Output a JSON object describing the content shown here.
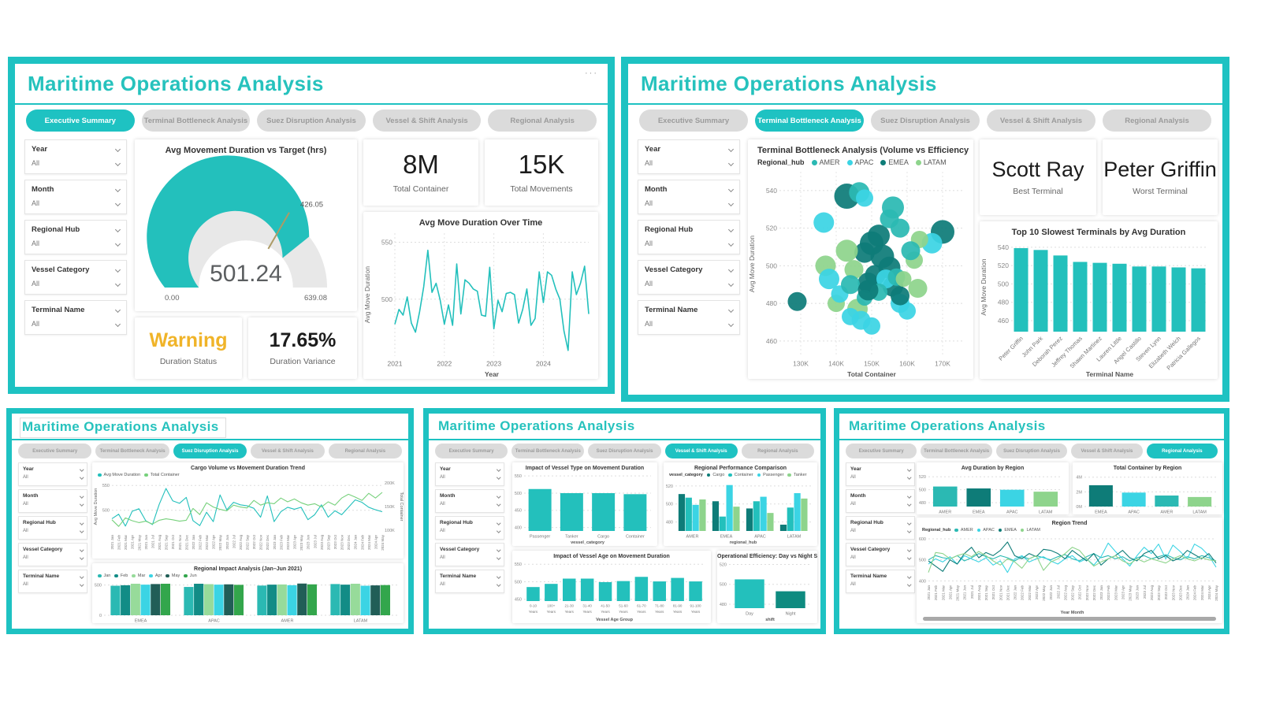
{
  "app": {
    "title": "Maritime Operations Analysis",
    "menu_dots": "···"
  },
  "tabs": [
    "Executive Summary",
    "Terminal Bottleneck Analysis",
    "Suez Disruption Analysis",
    "Vessel & Shift Analysis",
    "Regional Analysis"
  ],
  "filters": [
    {
      "label": "Year",
      "value": "All"
    },
    {
      "label": "Month",
      "value": "All"
    },
    {
      "label": "Regional Hub",
      "value": "All"
    },
    {
      "label": "Vessel Category",
      "value": "All"
    },
    {
      "label": "Terminal Name",
      "value": "All"
    }
  ],
  "colors": {
    "teal": "#1EC2C2",
    "chart_teal": "#23C0BC",
    "amer": "#2BB9B3",
    "apac": "#3BD4E4",
    "emea": "#0E7C78",
    "latam": "#8ED48C",
    "green_line": "#77D17C",
    "warning": "#F0B429",
    "dark_teal": "#0F8B80"
  },
  "panels": {
    "executive": {
      "active_tab": 0,
      "cards": {
        "total_container": {
          "value": "8M",
          "label": "Total Container"
        },
        "total_movements": {
          "value": "15K",
          "label": "Total Movements"
        },
        "duration_status": {
          "value": "Warning",
          "label": "Duration Status"
        },
        "duration_variance": {
          "value": "17.65%",
          "label": "Duration Variance"
        }
      }
    },
    "terminal": {
      "active_tab": 1,
      "cards": {
        "best": {
          "value": "Scott Ray",
          "label": "Best Terminal"
        },
        "worst": {
          "value": "Peter Griffin",
          "label": "Worst Terminal"
        }
      }
    },
    "suez": {
      "active_tab": 2
    },
    "vessel": {
      "active_tab": 3
    },
    "regional": {
      "active_tab": 4
    }
  },
  "months": [
    "2021 Jan",
    "2021 Feb",
    "2021 Mar",
    "2021 Apr",
    "2021 May",
    "2021 Jun",
    "2021 Jul",
    "2021 Aug",
    "2021 Sep",
    "2021 Oct",
    "2021 Nov",
    "2021 Dec",
    "2022 Jan",
    "2022 Feb",
    "2022 Mar",
    "2022 Apr",
    "2022 May",
    "2022 Jun",
    "2022 Jul",
    "2022 Aug",
    "2022 Sep",
    "2022 Oct",
    "2022 Nov",
    "2022 Dec",
    "2023 Jan",
    "2023 Feb",
    "2023 Mar",
    "2023 Apr",
    "2023 May",
    "2023 Jun",
    "2023 Jul",
    "2023 Aug",
    "2023 Sep",
    "2023 Oct",
    "2023 Nov",
    "2023 Dec",
    "2024 Jan",
    "2024 Feb",
    "2024 Mar",
    "2024 Apr",
    "2024 May"
  ],
  "chart_data": [
    {
      "type": "gauge",
      "title": "Avg Movement Duration vs Target (hrs)",
      "value": 501.24,
      "min": 0,
      "max": 639.08,
      "target": 426.05,
      "value_label": "501.24",
      "min_label": "0.00",
      "max_label": "639.08",
      "target_label": "426.05",
      "color": "#23C0BC"
    },
    {
      "type": "line",
      "title": "Avg Move Duration Over Time",
      "xlabel": "Year",
      "ylabel": "Avg Move Duration",
      "ylim": [
        450,
        558
      ],
      "yticks": [
        500,
        550
      ],
      "xticks_at": [
        0,
        12,
        24,
        36
      ],
      "xtick_labels": [
        "2021",
        "2022",
        "2023",
        "2024"
      ],
      "series": [
        {
          "name": "Avg Move Duration",
          "color": "#23C0BC",
          "values": [
            478,
            491,
            486,
            502,
            479,
            471,
            489,
            511,
            543,
            506,
            514,
            499,
            478,
            495,
            477,
            531,
            487,
            517,
            514,
            509,
            507,
            486,
            485,
            528,
            474,
            499,
            489,
            505,
            506,
            504,
            479,
            491,
            509,
            477,
            483,
            524,
            497,
            524,
            521,
            509,
            500,
            472,
            455,
            524,
            504,
            514,
            529,
            487
          ]
        }
      ]
    },
    {
      "type": "scatter",
      "title": "Terminal Bottleneck Analysis (Volume vs Efficiency",
      "legend_title": "Regional_hub",
      "xlabel": "Total Container",
      "ylabel": "Avg Move Duration",
      "xlim": [
        124,
        176
      ],
      "ylim": [
        452,
        550
      ],
      "yticks": [
        460,
        480,
        500,
        520,
        540
      ],
      "xticks": [
        130,
        140,
        150,
        160,
        170
      ],
      "xtick_labels": [
        "130K",
        "140K",
        "150K",
        "160K",
        "170K"
      ],
      "series": [
        {
          "name": "AMER",
          "color": "#2BB9B3"
        },
        {
          "name": "APAC",
          "color": "#3BD4E4"
        },
        {
          "name": "EMEA",
          "color": "#0E7C78"
        },
        {
          "name": "LATAM",
          "color": "#8ED48C"
        }
      ],
      "points": [
        [
          143,
          537,
          16,
          2
        ],
        [
          146.5,
          539,
          13,
          0
        ],
        [
          148,
          536,
          11,
          1
        ],
        [
          156,
          531,
          14,
          0
        ],
        [
          136.5,
          523,
          13,
          1
        ],
        [
          170,
          518,
          15,
          2
        ],
        [
          167,
          512,
          13,
          1
        ],
        [
          163.5,
          514,
          11,
          3
        ],
        [
          158,
          520,
          12,
          0
        ],
        [
          152,
          516,
          14,
          2
        ],
        [
          150,
          512,
          15,
          2
        ],
        [
          148,
          507,
          13,
          2
        ],
        [
          153,
          505,
          15,
          2
        ],
        [
          155,
          499,
          14,
          2
        ],
        [
          151,
          495,
          13,
          2
        ],
        [
          149,
          491,
          13,
          2
        ],
        [
          156,
          489,
          13,
          2
        ],
        [
          143,
          508,
          14,
          3
        ],
        [
          137,
          500,
          13,
          3
        ],
        [
          145,
          498,
          12,
          3
        ],
        [
          162,
          503,
          11,
          3
        ],
        [
          163,
          488,
          12,
          3
        ],
        [
          140,
          480,
          11,
          3
        ],
        [
          146,
          477,
          13,
          3
        ],
        [
          138,
          493,
          13,
          1
        ],
        [
          141,
          485,
          11,
          1
        ],
        [
          154,
          493,
          12,
          1
        ],
        [
          158,
          480,
          12,
          1
        ],
        [
          160,
          476,
          11,
          1
        ],
        [
          147,
          471,
          12,
          1
        ],
        [
          150,
          468,
          11,
          1
        ],
        [
          144,
          473,
          11,
          1
        ],
        [
          144,
          490,
          12,
          0
        ],
        [
          152,
          486,
          11,
          0
        ],
        [
          157,
          494,
          11,
          0
        ],
        [
          148,
          483,
          10,
          0
        ],
        [
          129,
          481,
          12,
          2
        ],
        [
          149,
          487,
          13,
          2
        ],
        [
          158,
          484,
          12,
          2
        ],
        [
          159,
          493,
          10,
          3
        ],
        [
          155,
          525,
          12,
          0
        ],
        [
          161,
          508,
          12,
          0
        ]
      ]
    },
    {
      "type": "bar",
      "title": "Top 10 Slowest Terminals by Avg Duration",
      "xlabel": "Terminal Name",
      "ylabel": "Avg Move Duration",
      "ylim": [
        448,
        545
      ],
      "yticks": [
        460,
        480,
        500,
        520,
        540
      ],
      "rotate45": true,
      "color": "#23C0BC",
      "categories": [
        "Peter Griffin",
        "John Park",
        "Deborah Perez",
        "Jeffrey Thomas",
        "Shawn Martinez",
        "Lauren Little",
        "Angel Castillo",
        "Steven Lynn",
        "Elizabeth Welch",
        "Patricia Gallegos"
      ],
      "values": [
        539,
        537,
        531,
        524,
        523,
        522,
        519,
        519,
        518,
        517
      ]
    },
    {
      "type": "line",
      "title": "Cargo Volume vs Movement Duration Trend",
      "ylabel": "Avg Move Duration",
      "right_ylabel": "Total Container",
      "ylim": [
        455,
        560
      ],
      "yticks": [
        500,
        550
      ],
      "right_ylim": [
        95,
        205
      ],
      "right_yticks": [
        100,
        150,
        200
      ],
      "right_ytick_labels": [
        "100K",
        "150K",
        "200K"
      ],
      "xlabels_ref": "months",
      "xlabels_rot": true,
      "series": [
        {
          "name": "Avg Move Duration",
          "color": "#23C0BC",
          "axis": "left",
          "values": [
            483,
            492,
            468,
            498,
            503,
            479,
            471,
            512,
            544,
            519,
            514,
            526,
            479,
            469,
            496,
            477,
            531,
            501,
            516,
            511,
            509,
            504,
            486,
            529,
            477,
            497,
            506,
            502,
            506,
            481,
            491,
            511,
            486,
            499,
            491,
            506,
            521,
            516,
            506,
            501,
            497
          ]
        },
        {
          "name": "Total Container",
          "color": "#77D17C",
          "axis": "right",
          "values": [
            122,
            108,
            126,
            120,
            116,
            119,
            113,
            121,
            124,
            122,
            119,
            121,
            146,
            133,
            158,
            149,
            144,
            141,
            153,
            149,
            147,
            163,
            153,
            158,
            156,
            168,
            160,
            166,
            158,
            153,
            156,
            149,
            160,
            153,
            168,
            176,
            170,
            163,
            178,
            168,
            180
          ]
        }
      ]
    },
    {
      "type": "groupedbar",
      "title": "Regional Impact Analysis (Jan–Jun 2021)",
      "ylim": [
        0,
        560
      ],
      "yticks": [
        0,
        500
      ],
      "series": [
        {
          "name": "Jan",
          "color": "#2BB9B3"
        },
        {
          "name": "Feb",
          "color": "#128C86"
        },
        {
          "name": "Mar",
          "color": "#97DB9A"
        },
        {
          "name": "Apr",
          "color": "#3BD4E4"
        },
        {
          "name": "May",
          "color": "#215E57"
        },
        {
          "name": "Jun",
          "color": "#33A64C"
        }
      ],
      "categories": [
        "EMEA",
        "APAC",
        "AMER",
        "LATAM"
      ],
      "values": [
        [
          488,
          496,
          521,
          506,
          516,
          521
        ],
        [
          468,
          521,
          514,
          506,
          511,
          503
        ],
        [
          491,
          506,
          509,
          497,
          524,
          511
        ],
        [
          516,
          506,
          521,
          488,
          494,
          499
        ]
      ]
    },
    {
      "type": "bar",
      "title": "Impact of Vessel Type on Movement Duration",
      "xlabel": "vessel_category",
      "ylim": [
        390,
        555
      ],
      "yticks": [
        400,
        450,
        500,
        550
      ],
      "color": "#23C0BC",
      "categories": [
        "Passenger",
        "Tanker",
        "Cargo",
        "Container"
      ],
      "values": [
        512,
        500,
        500,
        497
      ]
    },
    {
      "type": "groupedbar",
      "title": "Regional Performance Comparison",
      "legend_title": "vessel_category",
      "xlabel": "regional_hub",
      "ylim": [
        470,
        526
      ],
      "yticks": [
        480,
        500,
        520
      ],
      "series": [
        {
          "name": "Cargo",
          "color": "#0E7C78"
        },
        {
          "name": "Container",
          "color": "#23C0BC"
        },
        {
          "name": "Passenger",
          "color": "#3BD4E4"
        },
        {
          "name": "Tanker",
          "color": "#8ED48C"
        }
      ],
      "categories": [
        "AMER",
        "EMEA",
        "APAC",
        "LATAM"
      ],
      "values": [
        [
          511,
          507,
          499,
          505
        ],
        [
          503,
          486,
          521,
          497
        ],
        [
          495,
          503,
          508,
          490
        ],
        [
          477,
          496,
          512,
          506
        ]
      ]
    },
    {
      "type": "bar",
      "title": "Impact of Vessel Age on Movement Duration",
      "xlabel": "Vessel Age Group",
      "ylim": [
        445,
        555
      ],
      "yticks": [
        450,
        500,
        550
      ],
      "color": "#23C0BC",
      "two_line": true,
      "categories": [
        "0-10 Years",
        "100+ Years",
        "21-30 Years",
        "31-40 Years",
        "41-50 Years",
        "51-60 Years",
        "61-70 Years",
        "71-80 Years",
        "81-90 Years",
        "91-100 Years"
      ],
      "values": [
        485,
        494,
        509,
        509,
        499,
        502,
        514,
        501,
        511,
        501
      ]
    },
    {
      "type": "bar",
      "title": "Operational Efficiency: Day vs Night Shift",
      "xlabel": "shift",
      "ylim": [
        476,
        522
      ],
      "yticks": [
        480,
        500,
        520
      ],
      "categories": [
        "Day",
        "Night"
      ],
      "values": [
        505,
        493
      ],
      "colors": [
        "#23C0BC",
        "#0F8B80"
      ]
    },
    {
      "type": "bar",
      "title": "Avg Duration by Region",
      "ylim": [
        474,
        524
      ],
      "yticks": [
        480,
        500,
        520
      ],
      "categories": [
        "AMER",
        "EMEA",
        "APAC",
        "LATAM"
      ],
      "values": [
        505,
        502,
        500,
        497
      ],
      "colors": [
        "#2BB9B3",
        "#0E7C78",
        "#3BD4E4",
        "#8ED48C"
      ]
    },
    {
      "type": "bar",
      "title": "Total Container by Region",
      "ylim": [
        0,
        4.4
      ],
      "yticks": [
        0,
        2,
        4
      ],
      "ytick_labels": [
        "0M",
        "2M",
        "4M"
      ],
      "categories": [
        "EMEA",
        "APAC",
        "AMER",
        "LATAM"
      ],
      "values": [
        2.9,
        1.9,
        1.5,
        1.3
      ],
      "colors": [
        "#0E7C78",
        "#3BD4E4",
        "#2BB9B3",
        "#8ED48C"
      ]
    },
    {
      "type": "line",
      "title": "Region Trend",
      "legend_title": "Regional_hub",
      "xlabel": "Year Month",
      "ylim": [
        390,
        615
      ],
      "yticks": [
        400,
        500,
        600
      ],
      "xlabels_ref": "months",
      "xlabels_rot": true,
      "series": [
        {
          "name": "AMER",
          "color": "#2BB9B3",
          "values": [
            500,
            520,
            510,
            505,
            520,
            495,
            510,
            530,
            515,
            505,
            520,
            510,
            495,
            515,
            505,
            520,
            510,
            500,
            515,
            525,
            505,
            495,
            515,
            530,
            510,
            520,
            505,
            515,
            495,
            510,
            520,
            505,
            515,
            525,
            510,
            500,
            515,
            505,
            520,
            510,
            495
          ]
        },
        {
          "name": "APAC",
          "color": "#3BD4E4",
          "values": [
            480,
            505,
            490,
            515,
            480,
            520,
            505,
            490,
            510,
            475,
            495,
            440,
            505,
            520,
            490,
            505,
            515,
            495,
            480,
            505,
            520,
            490,
            505,
            475,
            515,
            580,
            540,
            505,
            470,
            520,
            560,
            530,
            575,
            505,
            570,
            540,
            505,
            575,
            555,
            520,
            465
          ]
        },
        {
          "name": "EMEA",
          "color": "#0E7C78",
          "values": [
            495,
            470,
            445,
            500,
            480,
            530,
            560,
            510,
            535,
            520,
            545,
            585,
            520,
            505,
            530,
            515,
            550,
            545,
            530,
            505,
            545,
            520,
            495,
            530,
            475,
            505,
            520,
            545,
            510,
            495,
            530,
            545,
            505,
            520,
            495,
            510,
            545,
            525,
            505,
            530,
            485
          ]
        },
        {
          "name": "LATAM",
          "color": "#8ED48C",
          "values": [
            440,
            535,
            530,
            505,
            520,
            530,
            515,
            540,
            520,
            495,
            475,
            505,
            490,
            460,
            505,
            520,
            450,
            490,
            505,
            530,
            560,
            545,
            505,
            470,
            490,
            505,
            520,
            495,
            480,
            505,
            490,
            505,
            495,
            485,
            505,
            520,
            505,
            495,
            510,
            500,
            495
          ]
        }
      ]
    }
  ]
}
